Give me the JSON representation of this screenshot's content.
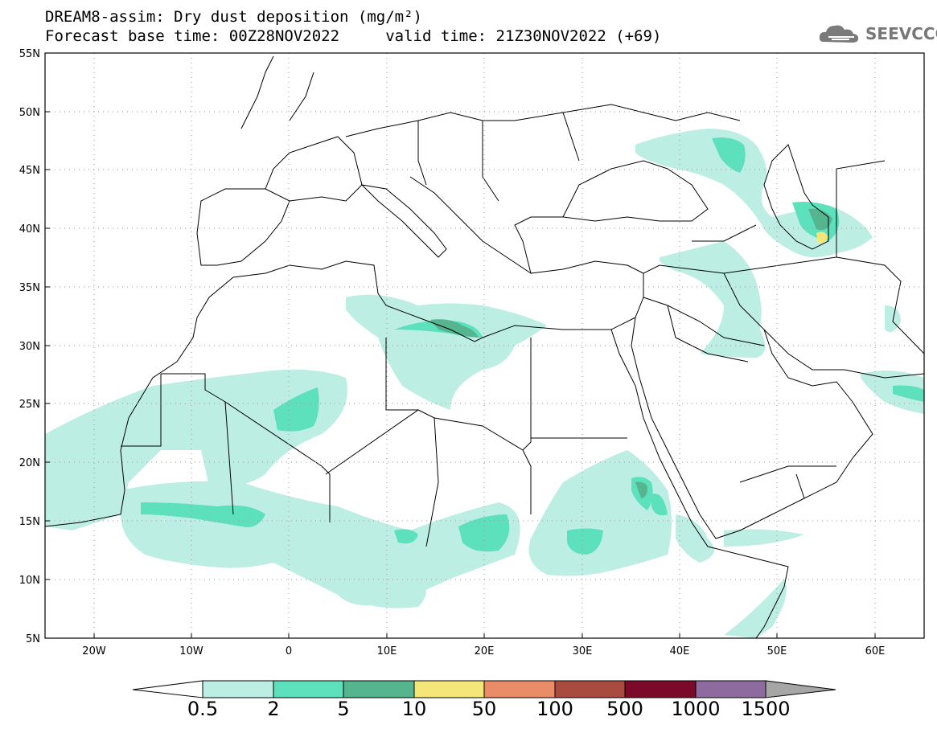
{
  "header": {
    "title_line1": "DREAM8-assim: Dry dust deposition (mg/m²)",
    "title_line2": "Forecast base time: 00Z28NOV2022     valid time: 21Z30NOV2022 (+69)",
    "logo_text": "SEEVCCC"
  },
  "map": {
    "lon_range": [
      -25,
      65
    ],
    "lat_range": [
      5,
      55
    ],
    "lat_ticks": [
      "55N",
      "50N",
      "45N",
      "40N",
      "35N",
      "30N",
      "25N",
      "20N",
      "15N",
      "10N",
      "5N"
    ],
    "lon_ticks": [
      "20W",
      "10W",
      "0",
      "10E",
      "20E",
      "30E",
      "40E",
      "50E",
      "60E"
    ]
  },
  "legend": {
    "levels": [
      "0.5",
      "2",
      "5",
      "10",
      "50",
      "100",
      "500",
      "1000",
      "1500"
    ],
    "colors": [
      "#ffffff",
      "#bdeee4",
      "#5de0bc",
      "#55b58f",
      "#f4e679",
      "#ea8c68",
      "#a94b3e",
      "#7b0a2a",
      "#8d6b9e",
      "#a6a6a6"
    ]
  }
}
